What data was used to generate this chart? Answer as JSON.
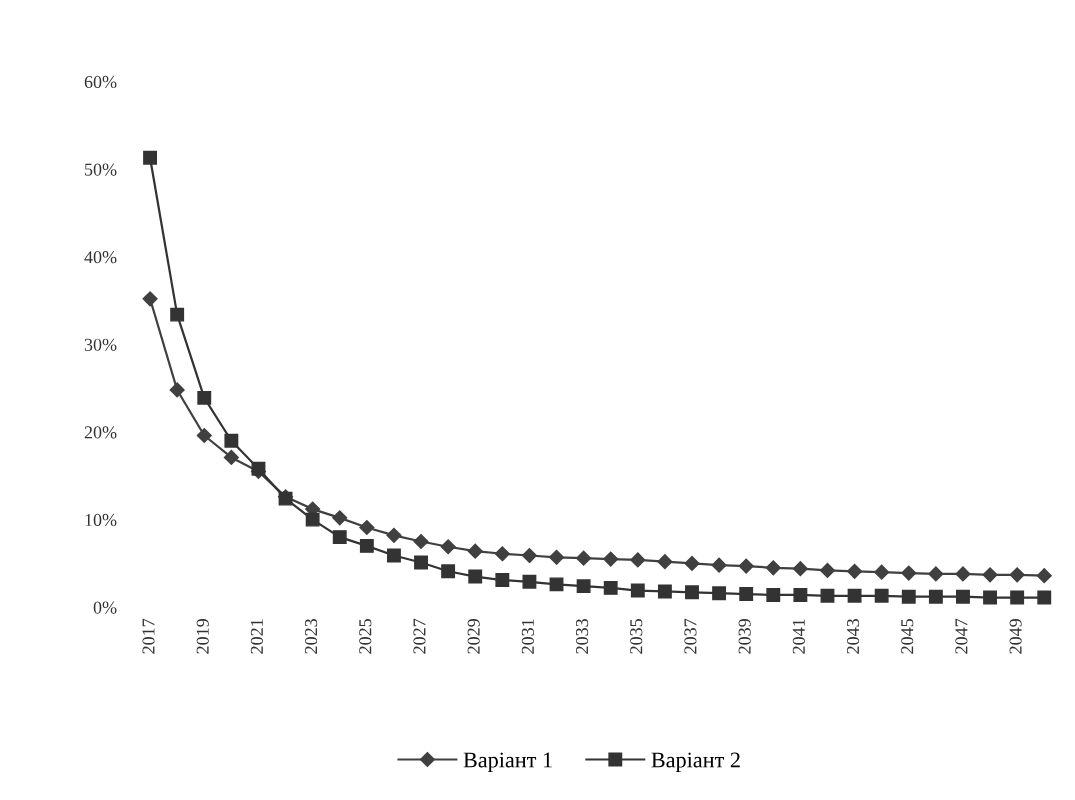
{
  "chart_data": {
    "type": "line",
    "categories": [
      "2017",
      null,
      "2019",
      null,
      "2021",
      null,
      "2023",
      null,
      "2025",
      null,
      "2027",
      null,
      "2029",
      null,
      "2031",
      null,
      "2033",
      null,
      "2035",
      null,
      "2037",
      null,
      "2039",
      null,
      "2041",
      null,
      "2043",
      null,
      "2045",
      null,
      "2047",
      null,
      "2049",
      null
    ],
    "series": [
      {
        "name": "Варіант 1",
        "color": "#404040",
        "marker": "diamond",
        "values": [
          35.2,
          24.8,
          19.6,
          17.1,
          15.5,
          12.6,
          11.2,
          10.2,
          9.1,
          8.2,
          7.5,
          6.9,
          6.4,
          6.1,
          5.9,
          5.7,
          5.6,
          5.5,
          5.4,
          5.2,
          5.0,
          4.8,
          4.7,
          4.5,
          4.4,
          4.2,
          4.1,
          4.0,
          3.9,
          3.8,
          3.8,
          3.7,
          3.7,
          3.6
        ]
      },
      {
        "name": "Варіант 2",
        "color": "#333333",
        "marker": "square",
        "values": [
          51.3,
          33.4,
          23.9,
          19.0,
          15.8,
          12.4,
          10.0,
          8.0,
          7.0,
          5.9,
          5.1,
          4.1,
          3.5,
          3.1,
          2.9,
          2.6,
          2.4,
          2.2,
          1.9,
          1.8,
          1.7,
          1.6,
          1.5,
          1.4,
          1.4,
          1.3,
          1.3,
          1.3,
          1.2,
          1.2,
          1.2,
          1.1,
          1.1,
          1.1
        ]
      }
    ],
    "ylim": [
      0,
      60
    ],
    "yticks": [
      {
        "value": 0,
        "label": "0%"
      },
      {
        "value": 10,
        "label": "10%"
      },
      {
        "value": 20,
        "label": "20%"
      },
      {
        "value": 30,
        "label": "30%"
      },
      {
        "value": 40,
        "label": "40%"
      },
      {
        "value": 50,
        "label": "50%"
      },
      {
        "value": 60,
        "label": "60%"
      }
    ],
    "line_style": "solid",
    "grid": false,
    "legend": "bottom"
  }
}
